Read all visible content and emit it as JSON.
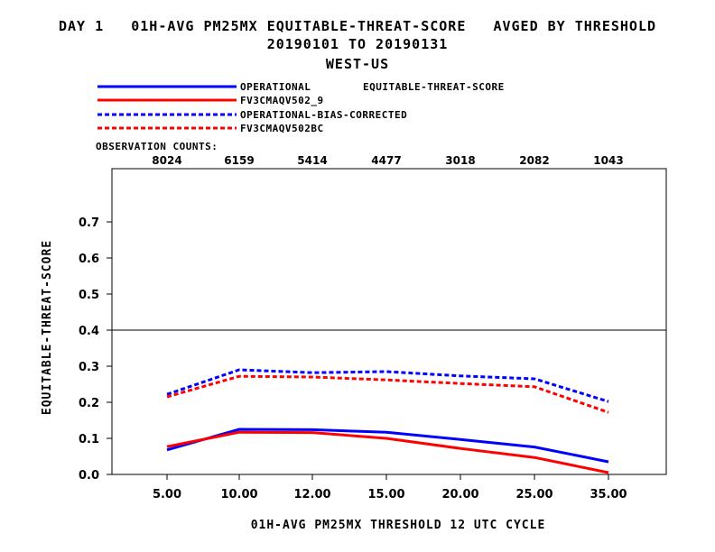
{
  "header": {
    "line1": "DAY 1   01H-AVG PM25MX EQUITABLE-THREAT-SCORE   AVGED BY THRESHOLD",
    "line2": "20190101 TO 20190131",
    "line3": "WEST-US"
  },
  "legend": {
    "metric_label": "EQUITABLE-THREAT-SCORE",
    "observation_counts_label": "OBSERVATION COUNTS:"
  },
  "chart_data": {
    "type": "line",
    "title": "DAY 1   01H-AVG PM25MX EQUITABLE-THREAT-SCORE   AVGED BY THRESHOLD",
    "xlabel": "01H-AVG PM25MX THRESHOLD    12 UTC CYCLE",
    "ylabel": "EQUITABLE-THREAT-SCORE",
    "categories": [
      "5.00",
      "10.00",
      "12.00",
      "15.00",
      "20.00",
      "25.00",
      "35.00"
    ],
    "observation_counts": [
      "8024",
      "6159",
      "5414",
      "4477",
      "3018",
      "2082",
      "1043"
    ],
    "yticks": [
      "0.0",
      "0.1",
      "0.2",
      "0.3",
      "0.4",
      "0.5",
      "0.6",
      "0.7"
    ],
    "ylim": [
      0,
      0.84
    ],
    "reference_line": 0.4,
    "grid": false,
    "legend_position": "top-left",
    "series": [
      {
        "name": "OPERATIONAL",
        "color": "#0000ff",
        "dashed": false,
        "values": [
          0.068,
          0.125,
          0.124,
          0.117,
          0.097,
          0.076,
          0.035
        ]
      },
      {
        "name": "FV3CMAQV502_9",
        "color": "#ff0000",
        "dashed": false,
        "values": [
          0.077,
          0.117,
          0.116,
          0.1,
          0.072,
          0.047,
          0.005
        ]
      },
      {
        "name": "OPERATIONAL-BIAS-CORRECTED",
        "color": "#0000ff",
        "dashed": true,
        "values": [
          0.222,
          0.29,
          0.282,
          0.285,
          0.273,
          0.265,
          0.202
        ]
      },
      {
        "name": "FV3CMAQV502BC",
        "color": "#ff0000",
        "dashed": true,
        "values": [
          0.215,
          0.272,
          0.27,
          0.262,
          0.252,
          0.243,
          0.172
        ]
      }
    ]
  }
}
